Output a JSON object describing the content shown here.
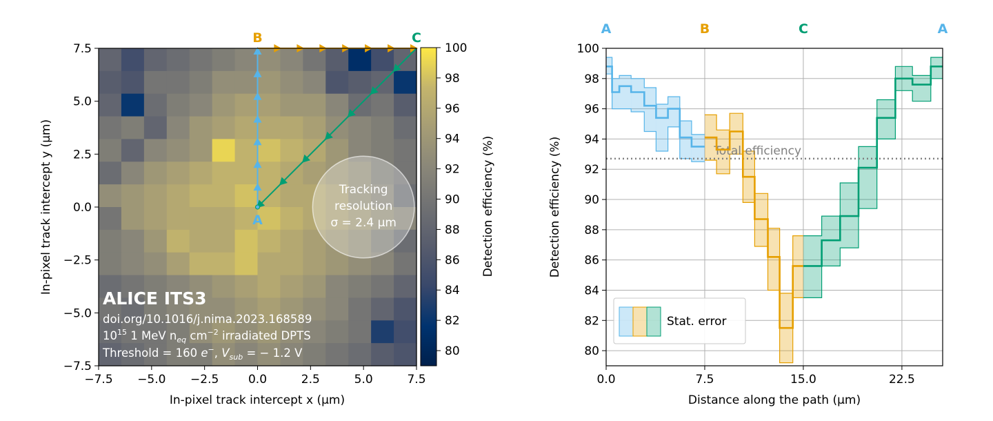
{
  "chart_data": [
    {
      "type": "heatmap",
      "xlabel": "In-pixel track intercept x (µm)",
      "ylabel": "In-pixel track intercept y (µm)",
      "xlim": [
        -7.5,
        7.5
      ],
      "ylim": [
        -7.5,
        7.5
      ],
      "x_ticks": [
        "−7.5",
        "−5.0",
        "−2.5",
        "0.0",
        "2.5",
        "5.0",
        "7.5"
      ],
      "y_ticks": [
        "−7.5",
        "−5.0",
        "−2.5",
        "0.0",
        "2.5",
        "5.0",
        "7.5"
      ],
      "colorbar": {
        "label": "Detection efficiency (%)",
        "range": [
          79,
          100
        ],
        "ticks": [
          "80",
          "82",
          "84",
          "86",
          "88",
          "90",
          "92",
          "94",
          "96",
          "98",
          "100"
        ],
        "colormap": "cividis"
      },
      "grid_rows_top_to_bottom": [
        [
          88,
          85,
          88,
          89,
          90,
          91,
          92,
          93,
          92,
          90,
          87,
          81,
          85,
          88
        ],
        [
          87,
          86,
          90,
          90,
          91,
          93,
          93,
          94,
          93,
          92,
          86,
          87,
          88,
          82
        ],
        [
          88,
          82,
          89,
          91,
          92,
          94,
          95,
          95,
          94,
          94,
          92,
          89,
          90,
          87
        ],
        [
          90,
          91,
          88,
          92,
          94,
          95,
          96,
          96,
          96,
          95,
          93,
          92,
          91,
          89
        ],
        [
          91,
          88,
          92,
          93,
          94,
          99,
          97,
          98,
          97,
          96,
          94,
          92,
          91,
          90
        ],
        [
          89,
          92,
          94,
          95,
          96,
          97,
          97,
          97,
          96,
          95,
          94,
          93,
          91,
          90
        ],
        [
          93,
          94,
          95,
          96,
          97,
          97,
          98,
          97,
          96,
          96,
          95,
          93,
          92,
          89
        ],
        [
          90,
          94,
          95,
          96,
          96,
          96,
          97,
          98,
          97,
          96,
          95,
          94,
          93,
          92
        ],
        [
          91,
          92,
          94,
          97,
          96,
          96,
          98,
          97,
          96,
          95,
          94,
          93,
          91,
          89
        ],
        [
          91,
          92,
          93,
          95,
          97,
          97,
          98,
          96,
          96,
          95,
          94,
          93,
          92,
          90
        ],
        [
          89,
          90,
          91,
          92,
          93,
          94,
          95,
          96,
          95,
          94,
          92,
          91,
          90,
          88
        ],
        [
          90,
          89,
          91,
          92,
          93,
          93,
          94,
          95,
          94,
          93,
          92,
          90,
          88,
          86
        ],
        [
          89,
          90,
          90,
          91,
          93,
          94,
          93,
          94,
          93,
          92,
          91,
          90,
          83,
          85
        ],
        [
          88,
          89,
          90,
          91,
          91,
          93,
          92,
          93,
          92,
          91,
          90,
          89,
          87,
          86
        ]
      ],
      "paths": [
        {
          "label_from": "A",
          "label_to": "B",
          "color": "#56b4e9",
          "from": [
            0.0,
            0.0
          ],
          "to": [
            0.0,
            7.5
          ]
        },
        {
          "label_from": "B",
          "label_to": "C",
          "color": "#e69f00",
          "from": [
            0.0,
            7.5
          ],
          "to": [
            7.5,
            7.5
          ]
        },
        {
          "label_from": "C",
          "label_to": "A",
          "color": "#009e73",
          "from": [
            7.5,
            7.5
          ],
          "to": [
            0.0,
            0.0
          ]
        }
      ],
      "point_labels": [
        "A",
        "B",
        "C"
      ],
      "tracking_resolution": {
        "line1": "Tracking",
        "line2": "resolution",
        "line3": "σ = 2.4 µm",
        "center": [
          5.0,
          0.0
        ],
        "radius": 2.4
      },
      "annotation": {
        "title": "ALICE ITS3",
        "doi": "doi.org/10.1016/j.nima.2023.168589",
        "fluence_num": "10",
        "fluence_exp": "15",
        "fluence_mid": " 1 MeV n",
        "fluence_sub": "eq",
        "fluence_unit": " cm",
        "fluence_unit_exp": "−2",
        "fluence_end": " irradiated DPTS",
        "threshold_a": "Threshold = 160 ",
        "threshold_e": "e",
        "threshold_e_exp": "−",
        "threshold_b": ", ",
        "vsub_v": "V",
        "vsub_sub": "sub",
        "vsub_val": " = − 1.2 V"
      }
    },
    {
      "type": "line",
      "style": "step with error bands",
      "xlabel": "Distance along the path (µm)",
      "ylabel": "Detection efficiency (%)",
      "xlim": [
        0,
        25.6
      ],
      "ylim": [
        79,
        100
      ],
      "x_ticks": [
        "0.0",
        "7.5",
        "15.0",
        "22.5"
      ],
      "y_ticks": [
        "80",
        "82",
        "84",
        "86",
        "88",
        "90",
        "92",
        "94",
        "96",
        "98",
        "100"
      ],
      "top_labels": [
        "A",
        "B",
        "C",
        "A"
      ],
      "top_label_positions": [
        0,
        7.5,
        15.0,
        25.6
      ],
      "total_efficiency": {
        "label": "Total efficiency",
        "value": 92.7
      },
      "legend": {
        "label": "Stat. error",
        "placement": "lower-left"
      },
      "series": [
        {
          "name": "A to B",
          "color": "#56b4e9",
          "edges": [
            0,
            0.45,
            1.0,
            1.9,
            2.9,
            3.8,
            4.7,
            5.6,
            6.5,
            7.5
          ],
          "values": [
            98.8,
            97.1,
            97.5,
            97.1,
            96.2,
            95.4,
            96.0,
            94.1,
            93.5
          ],
          "lower": [
            98.3,
            96.0,
            96.0,
            95.8,
            94.5,
            93.2,
            94.8,
            92.7,
            92.5
          ],
          "upper": [
            99.4,
            98.0,
            98.2,
            98.0,
            97.4,
            96.3,
            96.8,
            95.2,
            94.3
          ]
        },
        {
          "name": "B to C",
          "color": "#e69f00",
          "edges": [
            7.5,
            8.4,
            9.4,
            10.4,
            11.3,
            12.3,
            13.2,
            14.2,
            15.0
          ],
          "values": [
            94.1,
            93.3,
            94.5,
            91.5,
            88.7,
            86.2,
            81.5,
            85.6
          ],
          "lower": [
            92.6,
            91.7,
            93.0,
            89.8,
            86.9,
            84.0,
            79.2,
            83.5
          ],
          "upper": [
            95.6,
            94.6,
            95.7,
            93.2,
            90.4,
            88.1,
            83.8,
            87.6
          ]
        },
        {
          "name": "C to A",
          "color": "#009e73",
          "edges": [
            15.0,
            16.4,
            17.8,
            19.2,
            20.6,
            22.0,
            23.3,
            24.7,
            25.6
          ],
          "values": [
            85.6,
            87.3,
            88.9,
            92.1,
            95.4,
            98.0,
            97.6,
            98.8
          ],
          "lower": [
            83.5,
            85.6,
            86.8,
            89.4,
            94.0,
            97.2,
            96.5,
            98.0
          ],
          "upper": [
            87.6,
            88.9,
            91.1,
            93.5,
            96.6,
            98.8,
            98.2,
            99.4
          ]
        }
      ]
    }
  ]
}
